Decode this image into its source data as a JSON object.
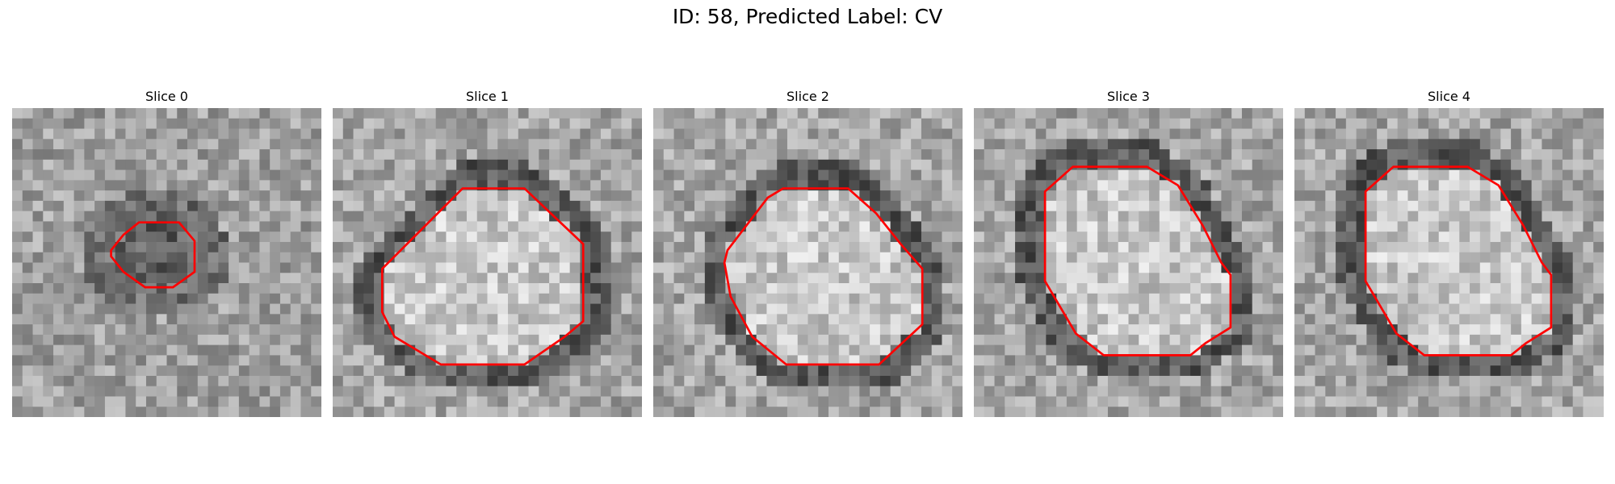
{
  "figure": {
    "title": "ID: 58, Predicted Label: CV"
  },
  "panels": [
    {
      "title": "Slice 0",
      "contour": [
        [
          3.2,
          4.6
        ],
        [
          3.6,
          4.1
        ],
        [
          4.1,
          3.7
        ],
        [
          5.4,
          3.7
        ],
        [
          5.9,
          4.3
        ],
        [
          5.9,
          5.3
        ],
        [
          5.2,
          5.8
        ],
        [
          4.3,
          5.8
        ],
        [
          3.6,
          5.3
        ],
        [
          3.2,
          4.8
        ]
      ],
      "seed": 11
    },
    {
      "title": "Slice 1",
      "contour": [
        [
          1.6,
          5.2
        ],
        [
          4.2,
          2.6
        ],
        [
          6.2,
          2.6
        ],
        [
          8.1,
          4.4
        ],
        [
          8.1,
          6.9
        ],
        [
          7.5,
          7.4
        ],
        [
          6.2,
          8.3
        ],
        [
          3.5,
          8.3
        ],
        [
          2.0,
          7.4
        ],
        [
          1.6,
          6.6
        ]
      ],
      "seed": 23
    },
    {
      "title": "Slice 2",
      "contour": [
        [
          2.4,
          4.6
        ],
        [
          3.7,
          2.9
        ],
        [
          4.2,
          2.6
        ],
        [
          6.3,
          2.6
        ],
        [
          7.2,
          3.4
        ],
        [
          8.0,
          4.4
        ],
        [
          8.7,
          5.2
        ],
        [
          8.7,
          7.0
        ],
        [
          7.3,
          8.3
        ],
        [
          4.3,
          8.3
        ],
        [
          3.2,
          7.4
        ],
        [
          2.5,
          6.1
        ],
        [
          2.3,
          5.0
        ]
      ],
      "seed": 37
    },
    {
      "title": "Slice 3",
      "contour": [
        [
          2.3,
          2.7
        ],
        [
          3.2,
          1.9
        ],
        [
          5.6,
          1.9
        ],
        [
          6.6,
          2.5
        ],
        [
          7.4,
          3.8
        ],
        [
          8.0,
          5.0
        ],
        [
          8.3,
          5.4
        ],
        [
          8.3,
          7.1
        ],
        [
          7.5,
          7.6
        ],
        [
          7.0,
          8.0
        ],
        [
          4.2,
          8.0
        ],
        [
          3.3,
          7.3
        ],
        [
          2.3,
          5.6
        ]
      ],
      "seed": 41
    },
    {
      "title": "Slice 4",
      "contour": [
        [
          2.3,
          2.7
        ],
        [
          3.2,
          1.9
        ],
        [
          5.6,
          1.9
        ],
        [
          6.6,
          2.5
        ],
        [
          7.4,
          3.8
        ],
        [
          8.0,
          5.0
        ],
        [
          8.3,
          5.4
        ],
        [
          8.3,
          7.1
        ],
        [
          7.5,
          7.6
        ],
        [
          7.0,
          8.0
        ],
        [
          4.2,
          8.0
        ],
        [
          3.3,
          7.3
        ],
        [
          2.3,
          5.6
        ]
      ],
      "seed": 53
    }
  ],
  "colors": {
    "contour": "#ff0000"
  }
}
